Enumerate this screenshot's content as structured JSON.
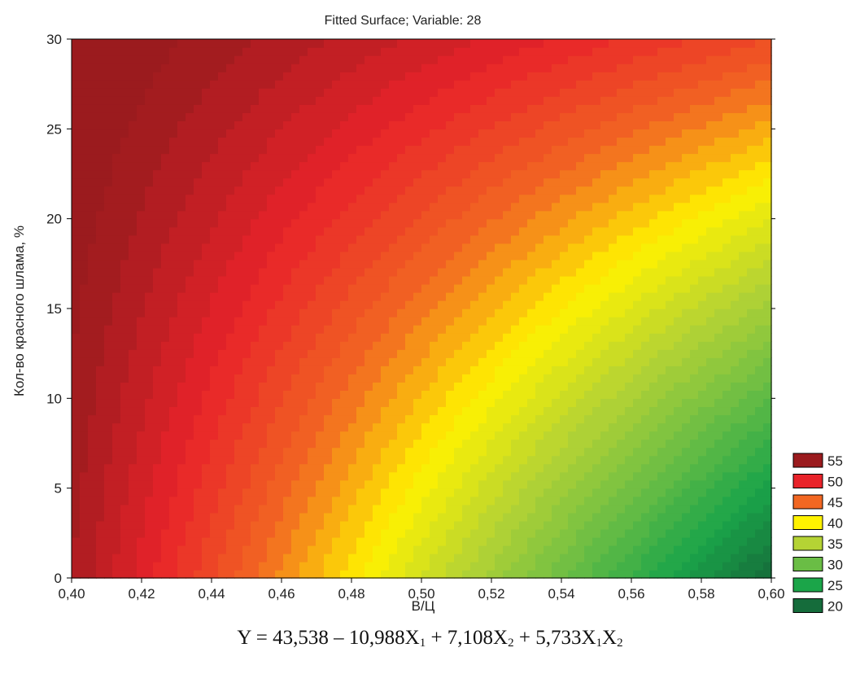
{
  "chart_data": {
    "type": "heatmap",
    "title": "Fitted Surface; Variable: 28",
    "xlabel": "В/Ц",
    "ylabel": "Кол-во красного шлама, %",
    "xlim": [
      0.4,
      0.6
    ],
    "ylim": [
      0,
      30
    ],
    "x_ticks": [
      "0,40",
      "0,42",
      "0,44",
      "0,46",
      "0,48",
      "0,50",
      "0,52",
      "0,54",
      "0,56",
      "0,58",
      "0,60"
    ],
    "y_ticks": [
      "0",
      "5",
      "10",
      "15",
      "20",
      "25",
      "30"
    ],
    "surface": {
      "description": "contour fill of fitted response over X (В/Ц) and Y (Кол-во красного шлама, %)",
      "corner_values": {
        "x0.40_y30": 56.5,
        "x0.60_y30": 47.0,
        "x0.40_y0": 54.0,
        "x0.60_y0": 20.0
      },
      "contour_step": 1
    },
    "legend": [
      {
        "label": "55",
        "color": "#9b1b1e"
      },
      {
        "label": "50",
        "color": "#e8232a"
      },
      {
        "label": "45",
        "color": "#f26722"
      },
      {
        "label": "40",
        "color": "#fff200"
      },
      {
        "label": "35",
        "color": "#b5d334"
      },
      {
        "label": "30",
        "color": "#6abd45"
      },
      {
        "label": "25",
        "color": "#1ba549"
      },
      {
        "label": "20",
        "color": "#156c3b"
      }
    ],
    "legend_position": "bottom-right"
  },
  "equation": {
    "prefix": "Y = 43,538 – 10,988X",
    "sub1": "1",
    "mid1": " + 7,108X",
    "sub2": "2",
    "mid2": " + 5,733X",
    "sub3": "1",
    "mid3": "X",
    "sub4": "2"
  }
}
